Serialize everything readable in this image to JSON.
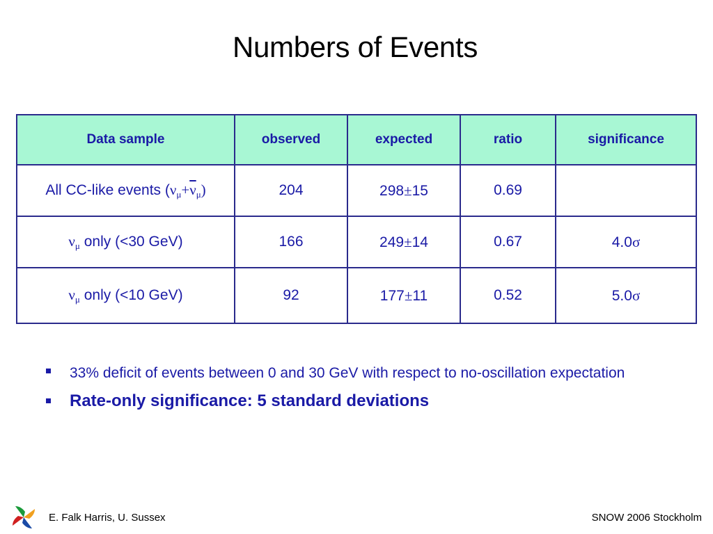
{
  "slide": {
    "title": "Numbers of Events"
  },
  "table": {
    "headers": [
      "Data sample",
      "observed",
      "expected",
      "ratio",
      "significance"
    ],
    "rows": [
      {
        "sample_prefix": "All CC-like events (",
        "nu": "ν",
        "mu": "μ",
        "plus": "+",
        "nu_bar": "ν",
        "mu2": "μ",
        "close": ")",
        "observed": "204",
        "expected_val": "298",
        "pm": "±",
        "expected_err": "15",
        "ratio": "0.69",
        "significance_val": "",
        "sigma": ""
      },
      {
        "nu": "ν",
        "mu": "μ",
        "sample_suffix": " only (<30 GeV)",
        "observed": "166",
        "expected_val": "249",
        "pm": "±",
        "expected_err": "14",
        "ratio": "0.67",
        "significance_val": "4.0",
        "sigma": "σ"
      },
      {
        "nu": "ν",
        "mu": "μ",
        "sample_suffix": " only (<10 GeV)",
        "observed": "92",
        "expected_val": "177",
        "pm": "±",
        "expected_err": "11",
        "ratio": "0.52",
        "significance_val": "5.0",
        "sigma": "σ"
      }
    ]
  },
  "bullets": [
    "33% deficit of events between 0 and 30 GeV with respect to no-oscillation expectation",
    "Rate-only significance: 5 standard deviations"
  ],
  "footer": {
    "authors": "E. Falk Harris, U. Sussex",
    "event": "SNOW 2006 Stockholm",
    "logo_icon": "university-logo-icon"
  },
  "colors": {
    "header_fill": "#a8f7d4",
    "text_blue": "#1a1aa6",
    "border": "#2a2a8c"
  }
}
